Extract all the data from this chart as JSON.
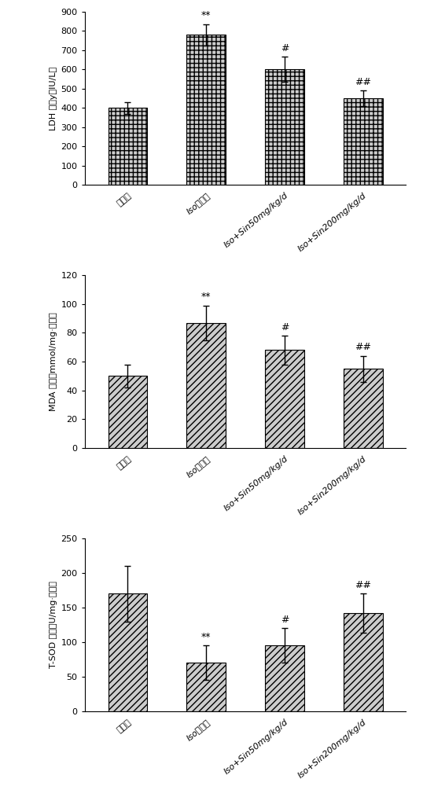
{
  "charts": [
    {
      "ylabel": "LDH 活性y（IU/L）",
      "ylabel_parts": [
        "LDH 活性y（IU/L）"
      ],
      "ylim": [
        0,
        900
      ],
      "yticks": [
        0,
        100,
        200,
        300,
        400,
        500,
        600,
        700,
        800,
        900
      ],
      "values": [
        400,
        780,
        600,
        450
      ],
      "errors": [
        30,
        55,
        65,
        40
      ],
      "annotations": [
        "",
        "**",
        "#",
        "##"
      ],
      "hatch_type": "grid",
      "categories": [
        "对照组",
        "Iso模型组",
        "Iso+Sin50mg/kg/d",
        "Iso+Sin200mg/kg/d"
      ]
    },
    {
      "ylabel": "MDA 含量（mmol/mg·蛋白）",
      "ylim": [
        0,
        120
      ],
      "yticks": [
        0,
        20,
        40,
        60,
        80,
        100,
        120
      ],
      "values": [
        50,
        87,
        68,
        55
      ],
      "errors": [
        8,
        12,
        10,
        9
      ],
      "annotations": [
        "",
        "**",
        "#",
        "##"
      ],
      "hatch_type": "diagonal",
      "categories": [
        "对照组",
        "Iso模型组",
        "Iso+Sin50mg/kg/d",
        "Iso+Sin200mg/kg/d"
      ]
    },
    {
      "ylabel": "T-SOD 活性（U/mg·蛋白）",
      "ylim": [
        0,
        250
      ],
      "yticks": [
        0,
        50,
        100,
        150,
        200,
        250
      ],
      "values": [
        170,
        70,
        95,
        142
      ],
      "errors": [
        40,
        25,
        25,
        28
      ],
      "annotations": [
        "",
        "**",
        "#",
        "##"
      ],
      "hatch_type": "diagonal",
      "categories": [
        "对照组",
        "Iso模型组",
        "Iso+Sin50mg/kg/d",
        "Iso+Sin200mg/kg/d"
      ]
    }
  ],
  "bar_color": "#cccccc",
  "edge_color": "#000000",
  "bar_width": 0.5,
  "font_size_ylabel": 8,
  "font_size_tick": 8,
  "font_size_annot": 9,
  "font_size_xlabel": 8,
  "background_color": "#ffffff"
}
